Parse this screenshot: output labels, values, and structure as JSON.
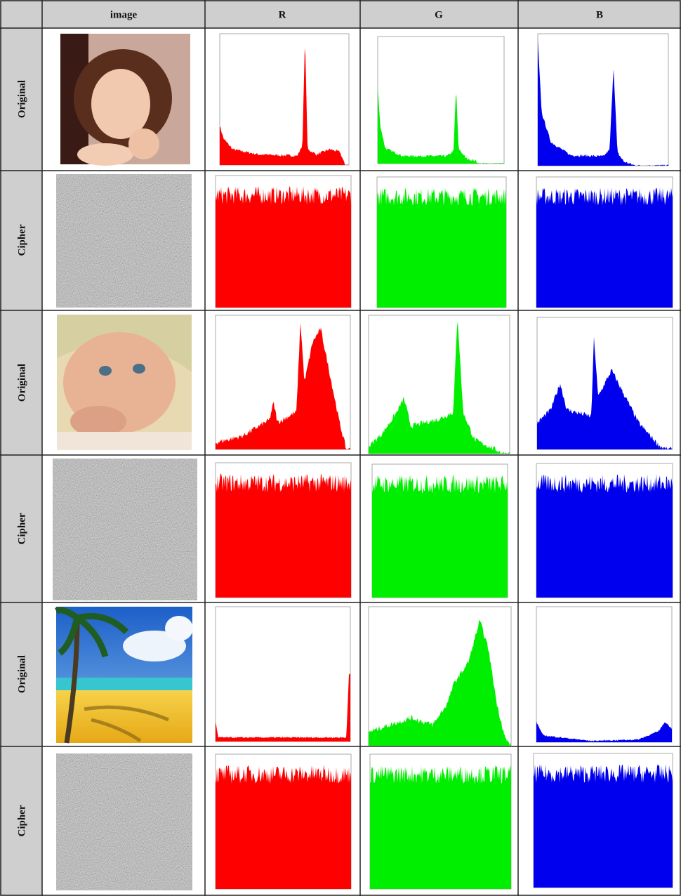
{
  "table": {
    "header": [
      "image",
      "R",
      "G",
      "B"
    ],
    "row_labels": [
      "Original",
      "Cipher",
      "Original",
      "Cipher",
      "Original",
      "Cipher"
    ]
  }
}
